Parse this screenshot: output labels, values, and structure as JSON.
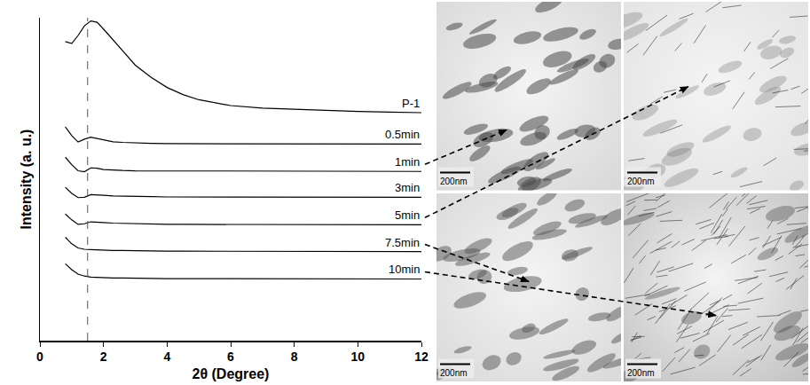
{
  "chart_data": {
    "type": "line",
    "x_label": "2θ (Degree)",
    "y_label": "Intensity (a. u.)",
    "xlim": [
      0,
      12
    ],
    "xticks": [
      0,
      2,
      4,
      6,
      8,
      10,
      12
    ],
    "ylim": [
      0,
      100
    ],
    "yticks": [],
    "tick_labels": "x",
    "grid": false,
    "reference_line": {
      "x": 1.5,
      "line_style": "dash"
    },
    "x": [
      0.8,
      1.0,
      1.2,
      1.4,
      1.6,
      1.8,
      2.0,
      2.3,
      2.6,
      3.0,
      3.5,
      4.0,
      4.5,
      5.0,
      6.0,
      7.0,
      8.0,
      9.0,
      10.0,
      11.0,
      12.0
    ],
    "series": [
      {
        "name": "P-1",
        "color": "#000000",
        "values": [
          92.6,
          92.0,
          94.5,
          97.5,
          99.0,
          98.6,
          96.5,
          93.0,
          89.8,
          85.3,
          81.5,
          78.4,
          76.2,
          74.6,
          72.8,
          72.0,
          71.6,
          71.2,
          71.0,
          70.8,
          70.6
        ]
      },
      {
        "name": "0.5min",
        "color": "#000000",
        "values": [
          66.2,
          63.5,
          61.5,
          62.4,
          63.0,
          62.6,
          62.0,
          61.6,
          61.4,
          61.2,
          61.1,
          61.0,
          61.0,
          61.0,
          60.9,
          60.9,
          60.9,
          60.9,
          60.9,
          60.9,
          60.9
        ]
      },
      {
        "name": "1min",
        "color": "#000000",
        "values": [
          56.8,
          54.5,
          52.6,
          52.3,
          53.5,
          53.4,
          53.0,
          52.8,
          52.7,
          52.6,
          52.6,
          52.5,
          52.5,
          52.5,
          52.4,
          52.4,
          52.4,
          52.4,
          52.4,
          52.4,
          52.4
        ]
      },
      {
        "name": "3min",
        "color": "#000000",
        "values": [
          47.5,
          45.6,
          44.3,
          44.4,
          45.2,
          45.2,
          45.0,
          44.8,
          44.7,
          44.6,
          44.6,
          44.5,
          44.5,
          44.5,
          44.4,
          44.4,
          44.4,
          44.4,
          44.4,
          44.4,
          44.4
        ]
      },
      {
        "name": "5min",
        "color": "#000000",
        "values": [
          39.2,
          37.4,
          36.0,
          36.2,
          36.8,
          36.8,
          36.6,
          36.4,
          36.3,
          36.2,
          36.1,
          36.0,
          36.0,
          36.0,
          35.9,
          35.9,
          35.9,
          35.9,
          35.9,
          35.9,
          35.9
        ]
      },
      {
        "name": "7.5min",
        "color": "#000000",
        "values": [
          32.0,
          30.0,
          28.7,
          28.3,
          28.2,
          28.1,
          28.0,
          27.9,
          27.9,
          27.8,
          27.8,
          27.7,
          27.7,
          27.7,
          27.6,
          27.6,
          27.6,
          27.6,
          27.6,
          27.6,
          27.6
        ]
      },
      {
        "name": "10min",
        "color": "#000000",
        "values": [
          23.8,
          22.0,
          20.6,
          20.0,
          19.7,
          19.6,
          19.5,
          19.4,
          19.4,
          19.3,
          19.3,
          19.2,
          19.2,
          19.2,
          19.1,
          19.1,
          19.1,
          19.1,
          19.1,
          19.1,
          19.1
        ]
      }
    ]
  },
  "tem_images": [
    {
      "sample": "1min",
      "scale_bar": "200nm"
    },
    {
      "sample": "5min",
      "scale_bar": "200nm"
    },
    {
      "sample": "7.5min",
      "scale_bar": "200nm"
    },
    {
      "sample": "10min",
      "scale_bar": "200nm"
    }
  ]
}
